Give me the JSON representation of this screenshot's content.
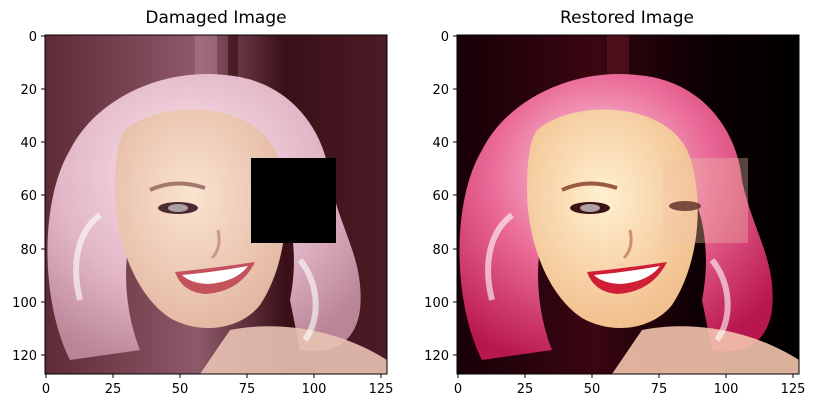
{
  "panels": [
    {
      "title": "Damaged Image",
      "variant": "damaged",
      "x_ticks": [
        "0",
        "25",
        "50",
        "75",
        "100",
        "125"
      ],
      "y_ticks": [
        "0",
        "20",
        "40",
        "60",
        "80",
        "100",
        "120"
      ],
      "x_range": [
        0,
        128
      ],
      "y_range": [
        0,
        128
      ],
      "occlusion_mask": {
        "x": [
          77,
          108
        ],
        "y": [
          46,
          77
        ],
        "color": "#000000"
      }
    },
    {
      "title": "Restored Image",
      "variant": "restored",
      "x_ticks": [
        "0",
        "25",
        "50",
        "75",
        "100",
        "125"
      ],
      "y_ticks": [
        "0",
        "20",
        "40",
        "60",
        "80",
        "100",
        "120"
      ],
      "x_range": [
        0,
        128
      ],
      "y_range": [
        0,
        128
      ]
    }
  ],
  "colors": {
    "damaged_background": "#4a1b26",
    "damaged_hair": "#e6bccb",
    "damaged_face": "#f1d3bf",
    "restored_background": "#120004",
    "restored_hair": "#e0447a",
    "restored_face": "#f7dcb8"
  }
}
